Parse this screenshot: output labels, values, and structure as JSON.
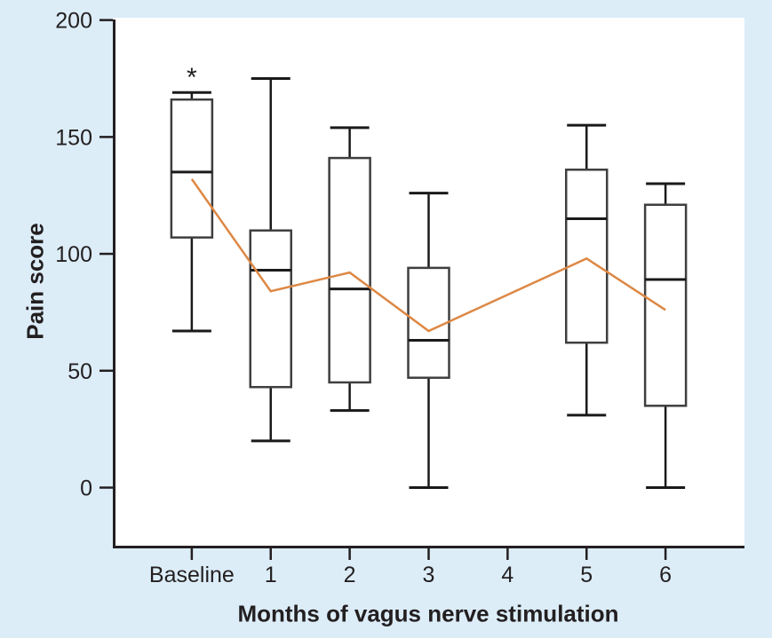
{
  "figure": {
    "background_color": "#dcedf8",
    "plot_background_color": "#ffffff",
    "axis_color": "#231f20",
    "box_border_color": "#3f3f3f",
    "whisker_color": "#1a1a1a",
    "text_color": "#231f20"
  },
  "chart_data": {
    "type": "box",
    "title": "",
    "xlabel": "Months of vagus nerve stimulation",
    "ylabel": "Pain score",
    "categories": [
      "Baseline",
      "1",
      "2",
      "3",
      "4",
      "5",
      "6"
    ],
    "y_ticks": [
      200,
      150,
      100,
      50,
      0
    ],
    "ylim": [
      -26,
      201
    ],
    "grid": "off",
    "legend": "none",
    "boxes": [
      {
        "category": "Baseline",
        "whisker_low": 67,
        "q1": 107,
        "median": 135,
        "q3": 166,
        "whisker_high": 169
      },
      {
        "category": "1",
        "whisker_low": 20,
        "q1": 43,
        "median": 93,
        "q3": 110,
        "whisker_high": 175
      },
      {
        "category": "2",
        "whisker_low": 33,
        "q1": 45,
        "median": 85,
        "q3": 141,
        "whisker_high": 154
      },
      {
        "category": "3",
        "whisker_low": 0,
        "q1": 47,
        "median": 63,
        "q3": 94,
        "whisker_high": 126
      },
      {
        "category": "4",
        "no_data": true
      },
      {
        "category": "5",
        "whisker_low": 31,
        "q1": 62,
        "median": 115,
        "q3": 136,
        "whisker_high": 155
      },
      {
        "category": "6",
        "whisker_low": 0,
        "q1": 35,
        "median": 89,
        "q3": 121,
        "whisker_high": 130
      }
    ],
    "mean_line": {
      "color": "#dd8845",
      "points": [
        {
          "category": "Baseline",
          "value": 132
        },
        {
          "category": "1",
          "value": 84
        },
        {
          "category": "2",
          "value": 92
        },
        {
          "category": "3",
          "value": 67
        },
        {
          "category": "5",
          "value": 98
        },
        {
          "category": "6",
          "value": 76
        }
      ]
    },
    "annotations": [
      {
        "text": "*",
        "category": "Baseline",
        "value": 177
      }
    ]
  }
}
